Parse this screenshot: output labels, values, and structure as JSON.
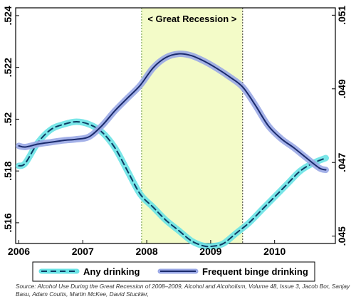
{
  "chart_data": {
    "type": "line",
    "x_ticks": [
      "2006",
      "2007",
      "2008",
      "2009",
      "2010"
    ],
    "y_left_ticks": [
      ".516",
      ".518",
      ".52",
      ".522",
      ".524"
    ],
    "y_right_ticks": [
      ".045",
      ".047",
      ".049",
      ".051"
    ],
    "y_left_range": [
      0.5152,
      0.5243
    ],
    "y_right_range": [
      0.0448,
      0.0512
    ],
    "x_range": [
      2005.95,
      2010.95
    ],
    "shaded_region": {
      "label": "< Great Recession >",
      "x_start": 2007.92,
      "x_end": 2009.5,
      "color": "#f3fbc8"
    },
    "series": [
      {
        "name": "Any drinking",
        "axis": "left",
        "style": "dashed",
        "color": "#0d3b63",
        "band_color": "#6ae3e6",
        "x": [
          2006.0,
          2006.1,
          2006.3,
          2006.5,
          2006.7,
          2006.9,
          2007.1,
          2007.3,
          2007.5,
          2007.7,
          2007.9,
          2008.1,
          2008.3,
          2008.5,
          2008.7,
          2008.9,
          2009.05,
          2009.2,
          2009.4,
          2009.6,
          2009.8,
          2010.0,
          2010.2,
          2010.4,
          2010.6,
          2010.8
        ],
        "values": [
          0.5182,
          0.5183,
          0.5191,
          0.5196,
          0.5198,
          0.5199,
          0.5198,
          0.5195,
          0.5189,
          0.518,
          0.5171,
          0.5166,
          0.5161,
          0.5157,
          0.5153,
          0.5151,
          0.5151,
          0.5152,
          0.5156,
          0.516,
          0.5165,
          0.517,
          0.5175,
          0.518,
          0.5183,
          0.5185
        ]
      },
      {
        "name": "Frequent binge drinking",
        "axis": "right",
        "style": "solid",
        "color": "#1a2a6c",
        "band_color": "#9aa8e6",
        "x": [
          2006.0,
          2006.1,
          2006.3,
          2006.5,
          2006.7,
          2006.9,
          2007.1,
          2007.3,
          2007.5,
          2007.7,
          2007.9,
          2008.1,
          2008.3,
          2008.5,
          2008.7,
          2008.9,
          2009.1,
          2009.3,
          2009.5,
          2009.7,
          2009.9,
          2010.1,
          2010.3,
          2010.5,
          2010.7,
          2010.8
        ],
        "values": [
          0.04745,
          0.04742,
          0.0475,
          0.04755,
          0.0476,
          0.04763,
          0.0477,
          0.048,
          0.0484,
          0.04875,
          0.0491,
          0.04957,
          0.04985,
          0.04995,
          0.0499,
          0.04975,
          0.04955,
          0.04932,
          0.04905,
          0.04855,
          0.048,
          0.04765,
          0.0474,
          0.04712,
          0.04685,
          0.0468
        ]
      }
    ]
  },
  "source": "Source: Alcohol Use During the Great Recession of 2008–2009, Alcohol and Alcoholism, Volume 48, Issue 3, Jacob Bor, Sanjay Basu, Adam Coutts, Martin McKee, David Stuckler,"
}
